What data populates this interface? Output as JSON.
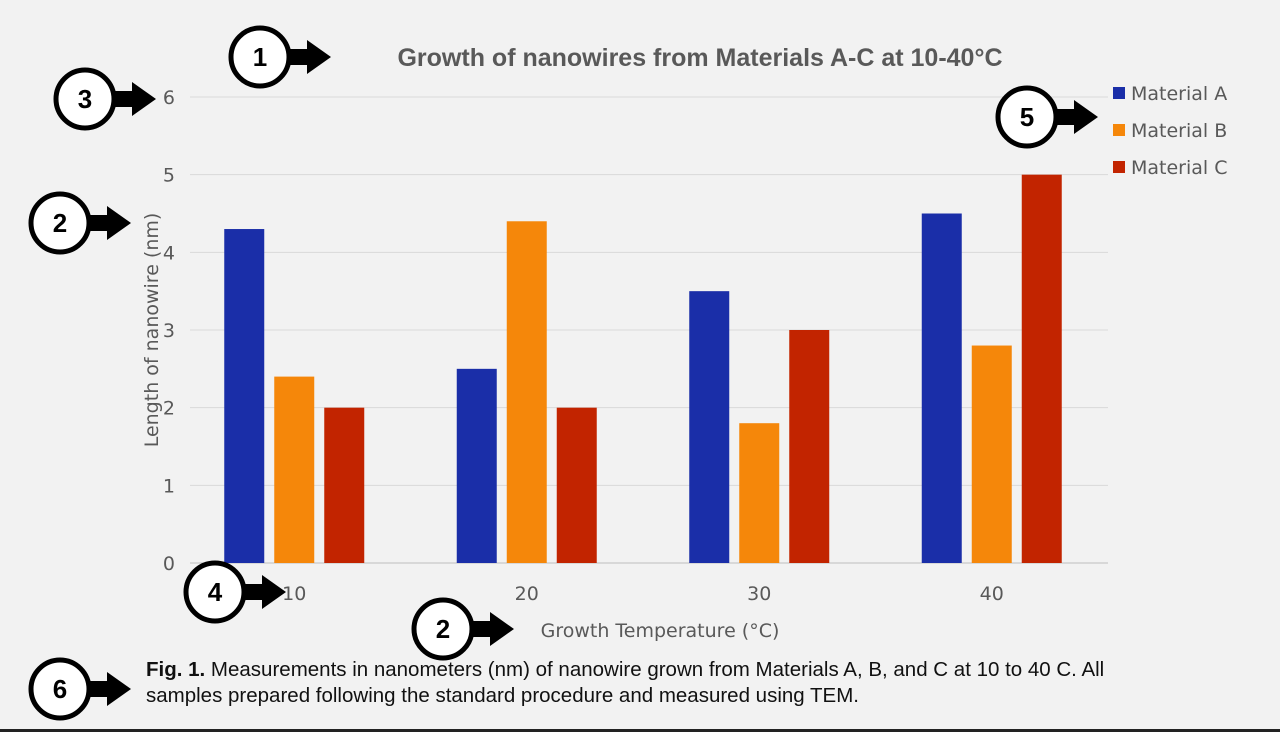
{
  "chart_data": {
    "type": "bar",
    "title": "Growth of nanowires from Materials A-C at 10-40°C",
    "xlabel": "Growth Temperature (°C)",
    "ylabel": "Length of nanowire (nm)",
    "categories": [
      "10",
      "20",
      "30",
      "40"
    ],
    "ylim": [
      0,
      6
    ],
    "yticks": [
      0,
      1,
      2,
      3,
      4,
      5,
      6
    ],
    "grid": true,
    "legend_position": "top-right",
    "series": [
      {
        "name": "Material A",
        "color": "#1a2ea8",
        "values": [
          4.3,
          2.5,
          3.5,
          4.5
        ]
      },
      {
        "name": "Material B",
        "color": "#f5870a",
        "values": [
          2.4,
          4.4,
          1.8,
          2.8
        ]
      },
      {
        "name": "Material C",
        "color": "#c22400",
        "values": [
          2.0,
          2.0,
          3.0,
          5.0
        ]
      }
    ]
  },
  "callouts": [
    {
      "id": "title",
      "number": "1"
    },
    {
      "id": "ylabel",
      "number": "2"
    },
    {
      "id": "xlabel",
      "number": "2"
    },
    {
      "id": "yaxis",
      "number": "3"
    },
    {
      "id": "xaxis",
      "number": "4"
    },
    {
      "id": "legend",
      "number": "5"
    },
    {
      "id": "caption",
      "number": "6"
    }
  ],
  "caption": {
    "label": "Fig. 1.",
    "text": " Measurements in nanometers (nm) of nanowire grown from Materials A, B, and C at 10 to 40 C. All samples prepared following the standard procedure and measured using TEM."
  }
}
